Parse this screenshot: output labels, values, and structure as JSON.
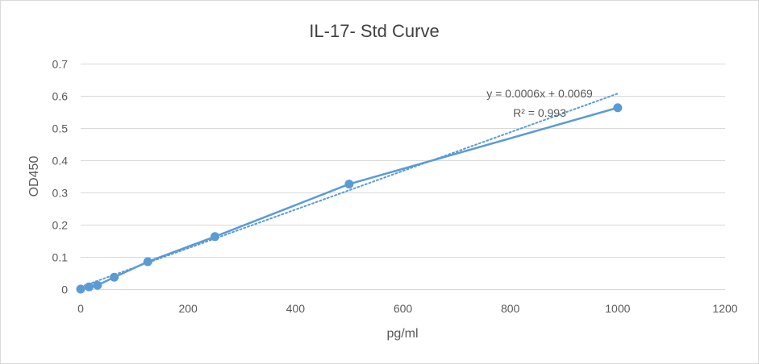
{
  "chart_data": {
    "type": "scatter",
    "title": "IL-17- Std Curve",
    "xlabel": "pg/ml",
    "ylabel": "OD450",
    "xlim": [
      0,
      1200
    ],
    "ylim": [
      0,
      0.7
    ],
    "x_ticks": [
      "0",
      "200",
      "400",
      "600",
      "800",
      "1000",
      "1200"
    ],
    "y_ticks": [
      "0",
      "0.1",
      "0.2",
      "0.3",
      "0.4",
      "0.5",
      "0.6",
      "0.7"
    ],
    "grid": "horizontal",
    "legend": "none",
    "series": [
      {
        "x": [
          0,
          15.6,
          31.25,
          62.5,
          125,
          250,
          500,
          1000
        ],
        "y": [
          0.0,
          0.007,
          0.012,
          0.037,
          0.085,
          0.163,
          0.326,
          0.563
        ],
        "line": "straight-with-markers",
        "color": "#5b9bd5"
      }
    ],
    "trendline": {
      "kind": "linear",
      "style": "dotted",
      "slope": 0.0006,
      "intercept": 0.0069,
      "x_range": [
        0,
        1000
      ],
      "equation": "y = 0.0006x + 0.0069",
      "r_squared": "R² = 0.993",
      "color": "#5b9bd5"
    }
  }
}
